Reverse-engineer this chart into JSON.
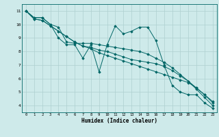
{
  "xlabel": "Humidex (Indice chaleur)",
  "bg_color": "#ceeaea",
  "grid_color": "#aed0d0",
  "line_color": "#006666",
  "xlim": [
    -0.5,
    23.5
  ],
  "ylim": [
    3.5,
    11.5
  ],
  "xticks": [
    0,
    1,
    2,
    3,
    4,
    5,
    6,
    7,
    8,
    9,
    10,
    11,
    12,
    13,
    14,
    15,
    16,
    17,
    18,
    19,
    20,
    21,
    22,
    23
  ],
  "yticks": [
    4,
    5,
    6,
    7,
    8,
    9,
    10,
    11
  ],
  "series": [
    [
      11.0,
      10.5,
      10.5,
      10.0,
      9.0,
      8.5,
      8.5,
      7.5,
      8.5,
      6.5,
      8.5,
      9.9,
      9.3,
      9.5,
      9.8,
      9.8,
      8.8,
      7.0,
      5.5,
      5.0,
      4.8,
      4.8,
      4.2,
      3.8
    ],
    [
      11.0,
      10.5,
      10.5,
      10.0,
      9.8,
      8.7,
      8.6,
      8.6,
      8.6,
      8.5,
      8.4,
      8.3,
      8.2,
      8.1,
      8.0,
      7.8,
      7.5,
      7.2,
      6.8,
      6.3,
      5.8,
      5.2,
      4.6,
      4.0
    ],
    [
      11.0,
      10.4,
      10.3,
      9.9,
      9.5,
      9.1,
      8.7,
      8.4,
      8.3,
      8.1,
      8.0,
      7.8,
      7.6,
      7.4,
      7.3,
      7.2,
      7.1,
      6.9,
      6.6,
      6.2,
      5.8,
      5.3,
      4.8,
      4.3
    ],
    [
      11.0,
      10.4,
      10.3,
      9.9,
      9.5,
      9.1,
      8.7,
      8.4,
      8.2,
      7.9,
      7.7,
      7.5,
      7.3,
      7.1,
      6.9,
      6.7,
      6.5,
      6.3,
      6.1,
      5.9,
      5.7,
      5.3,
      4.8,
      4.2
    ]
  ]
}
